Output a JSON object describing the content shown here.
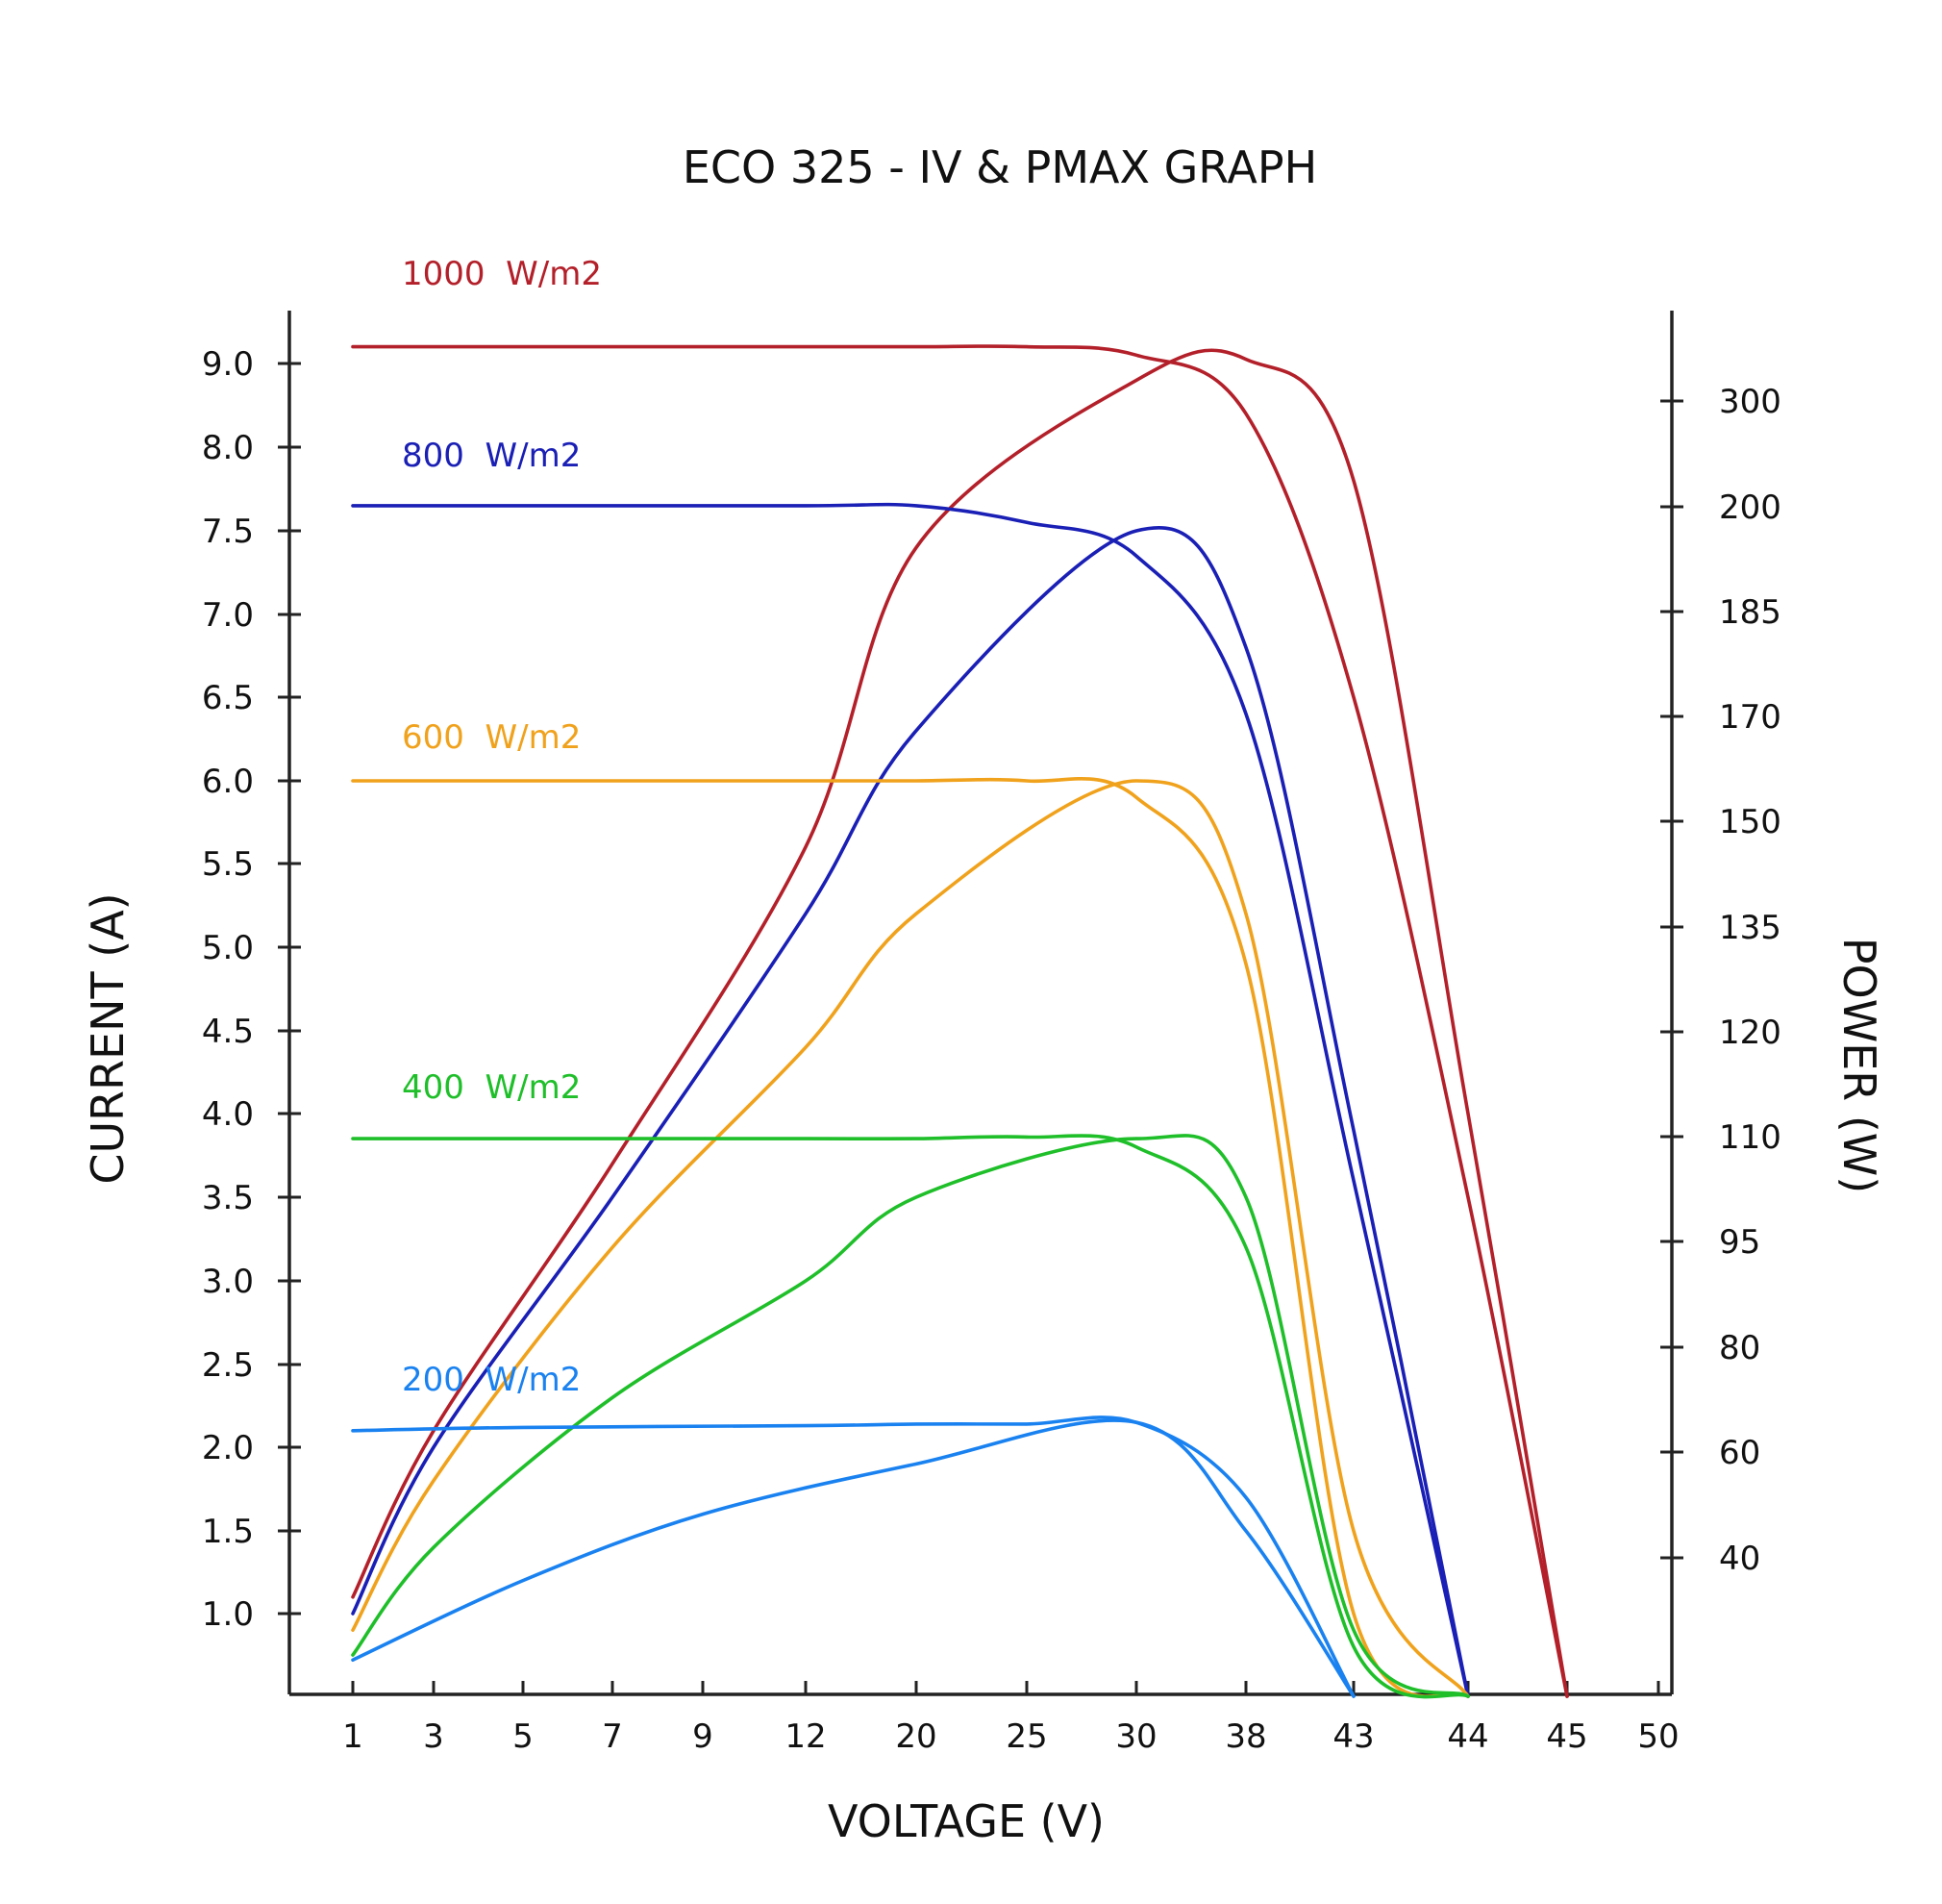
{
  "chart_data": {
    "type": "line",
    "title": "ECO 325 - IV & PMAX GRAPH",
    "xlabel": "VOLTAGE (V)",
    "ylabel": "CURRENT (A)",
    "y2label": "POWER (W)",
    "x_ticks": [
      "1",
      "3",
      "5",
      "7",
      "9",
      "12",
      "20",
      "25",
      "30",
      "38",
      "43",
      "44",
      "45",
      "50"
    ],
    "y_ticks": [
      "1.0",
      "1.5",
      "2.0",
      "2.5",
      "3.0",
      "3.5",
      "4.0",
      "4.5",
      "5.0",
      "5.5",
      "6.0",
      "6.5",
      "7.0",
      "7.5",
      "8.0",
      "9.0"
    ],
    "y2_ticks": [
      "40",
      "60",
      "80",
      "95",
      "110",
      "120",
      "135",
      "150",
      "170",
      "185",
      "200",
      "300"
    ],
    "grid": false,
    "series": [
      {
        "name": "1000  W/m2",
        "color": "#b3202a",
        "iv": [
          [
            1,
            9.2
          ],
          [
            5,
            9.2
          ],
          [
            12,
            9.2
          ],
          [
            20,
            9.2
          ],
          [
            25,
            9.2
          ],
          [
            30,
            9.1
          ],
          [
            38,
            8.4
          ],
          [
            43,
            6.5
          ],
          [
            44,
            3.5
          ],
          [
            45,
            0.5
          ]
        ],
        "pmax": [
          [
            1,
            1.1
          ],
          [
            3,
            2.1
          ],
          [
            7,
            3.7
          ],
          [
            12,
            5.6
          ],
          [
            20,
            7.4
          ],
          [
            30,
            8.8
          ],
          [
            38,
            9.05
          ],
          [
            43,
            7.8
          ],
          [
            44,
            4.0
          ],
          [
            45,
            0.5
          ]
        ]
      },
      {
        "name": "800  W/m2",
        "color": "#1a1fb5",
        "iv": [
          [
            1,
            7.65
          ],
          [
            5,
            7.65
          ],
          [
            12,
            7.65
          ],
          [
            20,
            7.65
          ],
          [
            25,
            7.55
          ],
          [
            30,
            7.35
          ],
          [
            38,
            6.4
          ],
          [
            43,
            3.6
          ],
          [
            44,
            0.5
          ]
        ],
        "pmax": [
          [
            1,
            1.0
          ],
          [
            3,
            2.0
          ],
          [
            7,
            3.5
          ],
          [
            12,
            5.2
          ],
          [
            20,
            6.3
          ],
          [
            30,
            7.5
          ],
          [
            38,
            6.8
          ],
          [
            43,
            3.9
          ],
          [
            44,
            0.5
          ]
        ]
      },
      {
        "name": "600  W/m2",
        "color": "#f0a21c",
        "iv": [
          [
            1,
            6.0
          ],
          [
            5,
            6.0
          ],
          [
            12,
            6.0
          ],
          [
            20,
            6.0
          ],
          [
            25,
            6.0
          ],
          [
            30,
            5.9
          ],
          [
            38,
            4.9
          ],
          [
            43,
            1.0
          ],
          [
            44,
            0.5
          ]
        ],
        "pmax": [
          [
            1,
            0.9
          ],
          [
            3,
            1.8
          ],
          [
            7,
            3.2
          ],
          [
            12,
            4.4
          ],
          [
            20,
            5.2
          ],
          [
            30,
            6.0
          ],
          [
            38,
            5.2
          ],
          [
            43,
            1.5
          ],
          [
            44,
            0.5
          ]
        ]
      },
      {
        "name": "400  W/m2",
        "color": "#1fbf2a",
        "iv": [
          [
            1,
            3.85
          ],
          [
            5,
            3.85
          ],
          [
            12,
            3.85
          ],
          [
            20,
            3.85
          ],
          [
            25,
            3.86
          ],
          [
            30,
            3.8
          ],
          [
            38,
            3.2
          ],
          [
            43,
            0.8
          ],
          [
            44,
            0.5
          ]
        ],
        "pmax": [
          [
            1,
            0.75
          ],
          [
            3,
            1.4
          ],
          [
            7,
            2.3
          ],
          [
            12,
            3.0
          ],
          [
            20,
            3.5
          ],
          [
            30,
            3.85
          ],
          [
            38,
            3.5
          ],
          [
            43,
            0.9
          ],
          [
            44,
            0.5
          ]
        ]
      },
      {
        "name": "200  W/m2",
        "color": "#1a82f0",
        "iv": [
          [
            1,
            2.1
          ],
          [
            5,
            2.12
          ],
          [
            12,
            2.13
          ],
          [
            20,
            2.14
          ],
          [
            25,
            2.14
          ],
          [
            30,
            2.15
          ],
          [
            38,
            1.7
          ],
          [
            43,
            0.5
          ]
        ],
        "pmax": [
          [
            1,
            0.72
          ],
          [
            5,
            1.2
          ],
          [
            9,
            1.6
          ],
          [
            20,
            1.9
          ],
          [
            30,
            2.15
          ],
          [
            38,
            1.5
          ],
          [
            43,
            0.5
          ]
        ]
      }
    ]
  }
}
